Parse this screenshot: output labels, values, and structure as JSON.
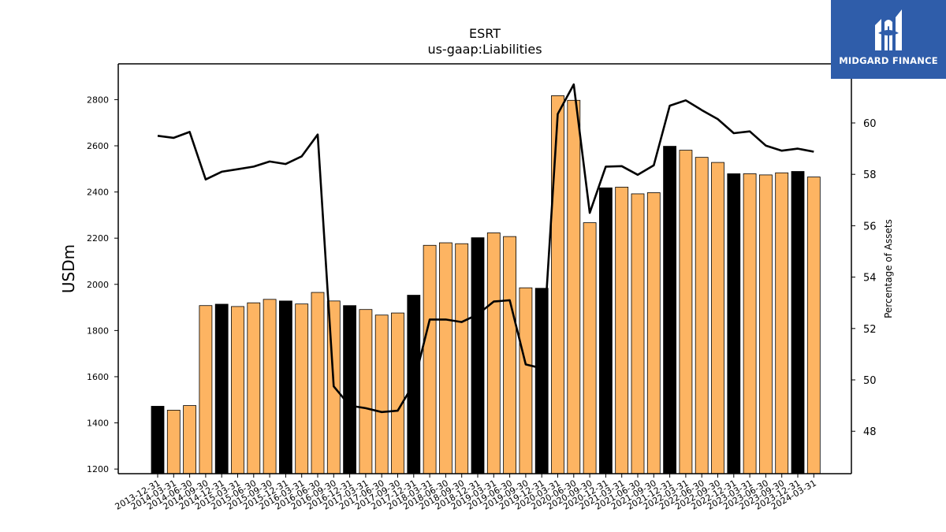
{
  "brand": {
    "name": "MIDGARD FINANCE",
    "color": "#2f5daa",
    "icon": "midgard-logo-icon"
  },
  "chart_data": {
    "type": "bar",
    "title": "ESRT",
    "subtitle": "us-gaap:Liabilities",
    "ylabel": "USDm",
    "y2label": "Percentage of Assets",
    "ylim": [
      1180,
      2955
    ],
    "y2lim": [
      46.35,
      62.3
    ],
    "yticks": [
      1200,
      1400,
      1600,
      1800,
      2000,
      2200,
      2400,
      2600,
      2800
    ],
    "y2ticks": [
      48,
      50,
      52,
      54,
      56,
      58,
      60
    ],
    "colors": {
      "annual": "#000000",
      "quarterly": "#fdb462",
      "line": "#000000"
    },
    "categories": [
      "2013-12-31",
      "2014-03-31",
      "2014-06-30",
      "2014-09-30",
      "2014-12-31",
      "2015-03-31",
      "2015-06-30",
      "2015-09-30",
      "2015-12-31",
      "2016-03-31",
      "2016-06-30",
      "2016-09-30",
      "2016-12-31",
      "2017-03-31",
      "2017-06-30",
      "2017-09-30",
      "2017-12-31",
      "2018-03-31",
      "2018-06-30",
      "2018-09-30",
      "2018-12-31",
      "2019-03-31",
      "2019-06-30",
      "2019-09-30",
      "2019-12-31",
      "2020-03-31",
      "2020-06-30",
      "2020-09-30",
      "2020-12-31",
      "2021-03-31",
      "2021-06-30",
      "2021-09-30",
      "2021-12-31",
      "2022-03-31",
      "2022-06-30",
      "2022-09-30",
      "2022-12-31",
      "2023-03-31",
      "2023-06-30",
      "2023-09-30",
      "2023-12-31",
      "2024-03-31"
    ],
    "series": [
      {
        "type": "bar",
        "values": [
          1472,
          1455,
          1475,
          1908,
          1914,
          1904,
          1920,
          1935,
          1928,
          1915,
          1965,
          1928,
          1908,
          1891,
          1867,
          1876,
          1953,
          2169,
          2180,
          2176,
          2202,
          2223,
          2207,
          1985,
          1983,
          2817,
          2797,
          2267,
          2418,
          2421,
          2392,
          2397,
          2598,
          2581,
          2550,
          2528,
          2479,
          2479,
          2474,
          2483,
          2489,
          2465
        ]
      },
      {
        "type": "line",
        "axis": "right",
        "values": [
          59.5,
          59.42,
          59.65,
          57.8,
          58.1,
          58.2,
          58.3,
          58.5,
          58.4,
          58.7,
          59.55,
          49.75,
          49.0,
          48.9,
          48.75,
          48.8,
          49.85,
          52.35,
          52.35,
          52.25,
          52.55,
          53.05,
          53.1,
          50.6,
          50.45,
          60.35,
          61.5,
          56.5,
          58.3,
          58.32,
          57.98,
          58.35,
          60.67,
          60.88,
          60.5,
          60.15,
          59.6,
          59.67,
          59.12,
          58.92,
          59.0,
          58.88
        ]
      }
    ]
  }
}
